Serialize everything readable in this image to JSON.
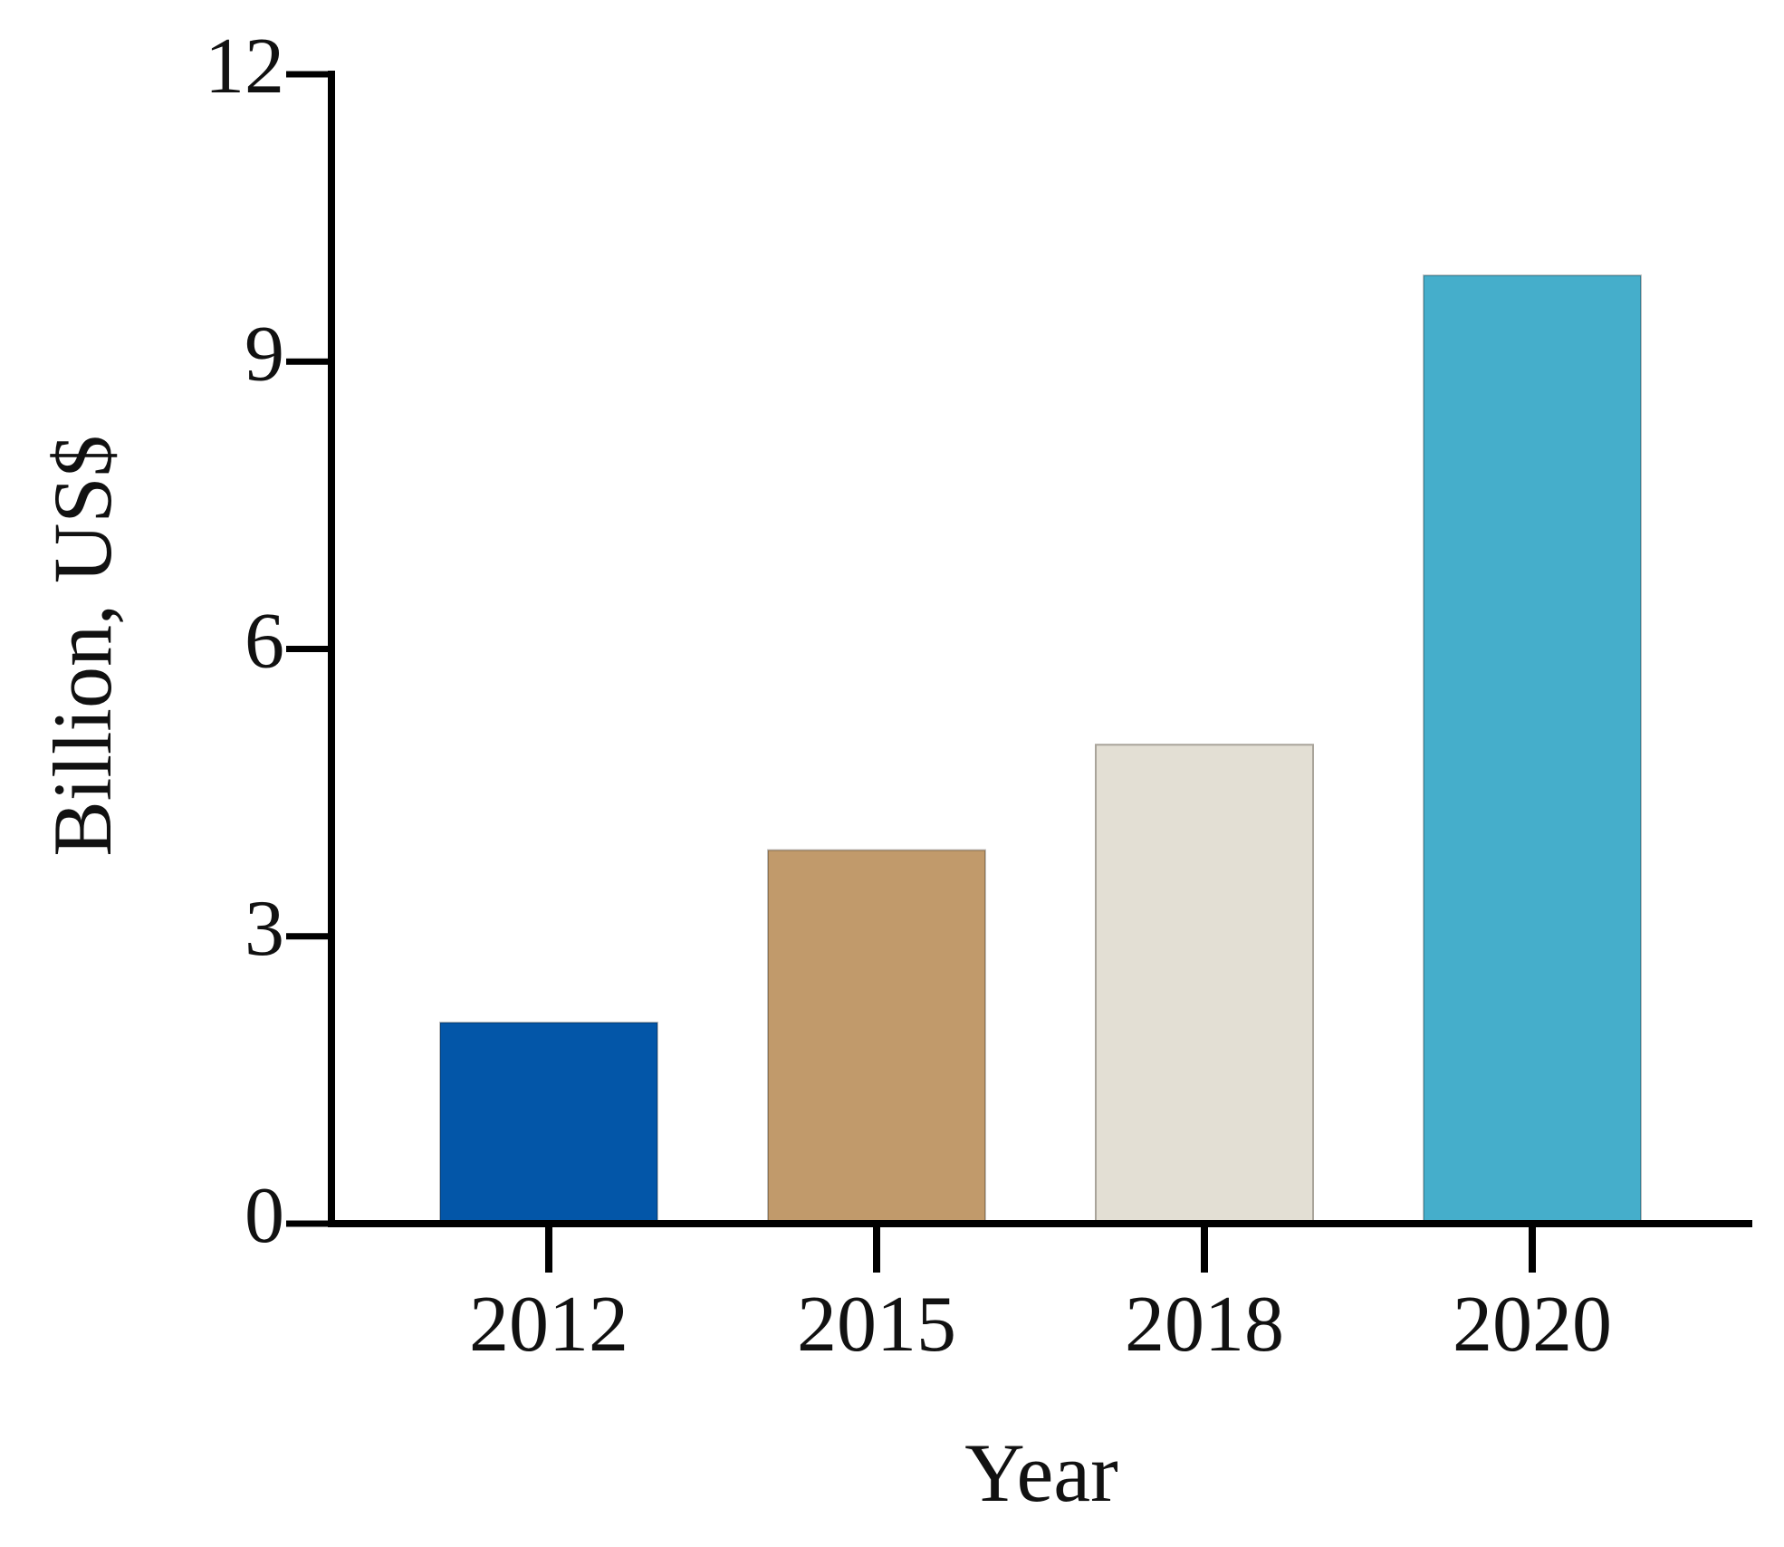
{
  "chart_data": {
    "type": "bar",
    "x_label": "Year",
    "y_label": "Billion, US$",
    "categories": [
      "2012",
      "2015",
      "2018",
      "2020"
    ],
    "values": [
      2.1,
      3.9,
      5.0,
      9.9
    ],
    "colors": [
      "#0356a8",
      "#c19a6b",
      "#e3dfd4",
      "#45aecb"
    ],
    "ylim": [
      0,
      12
    ],
    "yticks": [
      0,
      3,
      6,
      9,
      12
    ],
    "grid": false
  }
}
